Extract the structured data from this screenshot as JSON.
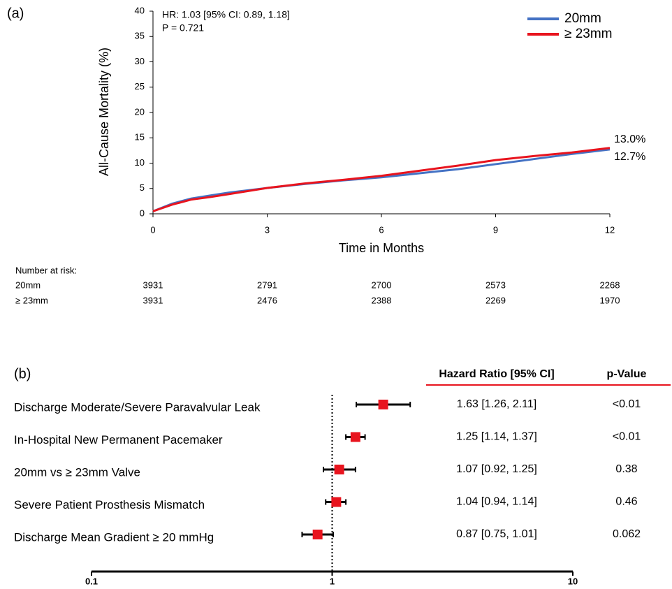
{
  "chart_data": [
    {
      "type": "line",
      "panel_label": "(a)",
      "y_label": "All-Cause Mortality (%)",
      "x_label": "Time in Months",
      "annotations": [
        "HR: 1.03 [95% CI: 0.89, 1.18]",
        "P = 0.721"
      ],
      "end_labels": [
        "13.0%",
        "12.7%"
      ],
      "x": [
        0,
        0.5,
        1,
        1.5,
        2,
        3,
        4,
        5,
        6,
        7,
        8,
        9,
        10,
        11,
        12
      ],
      "series": [
        {
          "name": "20mm",
          "color": "#4472c4",
          "values": [
            0.5,
            2,
            3,
            3.6,
            4.2,
            5.1,
            5.9,
            6.6,
            7.2,
            8,
            8.8,
            9.8,
            10.8,
            11.8,
            12.7
          ]
        },
        {
          "name": "≥ 23mm",
          "color": "#e8141e",
          "values": [
            0.5,
            1.8,
            2.8,
            3.3,
            3.9,
            5.1,
            6,
            6.7,
            7.5,
            8.5,
            9.5,
            10.6,
            11.4,
            12.1,
            13.0
          ]
        }
      ],
      "xlim": [
        0,
        12
      ],
      "xticks": [
        0,
        3,
        6,
        9,
        12
      ],
      "ylim": [
        0,
        40
      ],
      "yticks": [
        0,
        5,
        10,
        15,
        20,
        25,
        30,
        35,
        40
      ],
      "legend": "top-right",
      "risk_table": {
        "title": "Number at risk:",
        "rows": [
          {
            "label": "20mm",
            "values": [
              "3931",
              "2791",
              "2700",
              "2573",
              "2268"
            ]
          },
          {
            "label": "≥ 23mm",
            "values": [
              "3931",
              "2476",
              "2388",
              "2269",
              "1970"
            ]
          }
        ]
      }
    },
    {
      "type": "forest",
      "panel_label": "(b)",
      "columns": [
        "Hazard Ratio [95% CI]",
        "p-Value"
      ],
      "categories": [
        "Discharge Moderate/Severe Paravalvular Leak",
        "In-Hospital New Permanent Pacemaker",
        "20mm vs ≥ 23mm Valve",
        "Severe Patient Prosthesis Mismatch",
        "Discharge Mean Gradient ≥ 20 mmHg"
      ],
      "values": [
        1.63,
        1.25,
        1.07,
        1.04,
        0.87
      ],
      "lower": [
        1.26,
        1.14,
        0.92,
        0.94,
        0.75
      ],
      "upper": [
        2.11,
        1.37,
        1.25,
        1.14,
        1.01
      ],
      "value_labels": [
        "1.63 [1.26, 2.11]",
        "1.25 [1.14, 1.37]",
        "1.07 [0.92, 1.25]",
        "1.04 [0.94, 1.14]",
        "0.87 [0.75, 1.01]"
      ],
      "p_values": [
        "<0.01",
        "<0.01",
        "0.38",
        "0.46",
        "0.062"
      ],
      "color": "#e8141e",
      "log_x": true,
      "reference_line": 1,
      "xlim": [
        0.1,
        10
      ],
      "xticks": [
        0.1,
        1,
        10
      ]
    }
  ]
}
